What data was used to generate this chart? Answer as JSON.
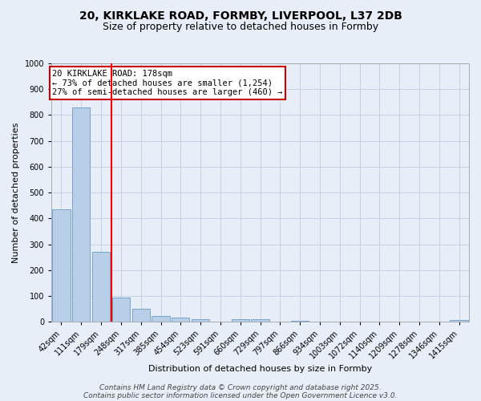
{
  "title_line1": "20, KIRKLAKE ROAD, FORMBY, LIVERPOOL, L37 2DB",
  "title_line2": "Size of property relative to detached houses in Formby",
  "xlabel": "Distribution of detached houses by size in Formby",
  "ylabel": "Number of detached properties",
  "categories": [
    "42sqm",
    "111sqm",
    "179sqm",
    "248sqm",
    "317sqm",
    "385sqm",
    "454sqm",
    "523sqm",
    "591sqm",
    "660sqm",
    "729sqm",
    "797sqm",
    "866sqm",
    "934sqm",
    "1003sqm",
    "1072sqm",
    "1140sqm",
    "1209sqm",
    "1278sqm",
    "1346sqm",
    "1415sqm"
  ],
  "values": [
    435,
    830,
    270,
    95,
    50,
    23,
    15,
    10,
    0,
    10,
    10,
    0,
    5,
    0,
    0,
    0,
    0,
    0,
    0,
    0,
    8
  ],
  "bar_color": "#b8cfe8",
  "bar_edge_color": "#6699cc",
  "red_line_x": 2.5,
  "annotation_text": "20 KIRKLAKE ROAD: 178sqm\n← 73% of detached houses are smaller (1,254)\n27% of semi-detached houses are larger (460) →",
  "annotation_box_color": "#ffffff",
  "annotation_box_edge": "#cc0000",
  "ylim": [
    0,
    1000
  ],
  "yticks": [
    0,
    100,
    200,
    300,
    400,
    500,
    600,
    700,
    800,
    900,
    1000
  ],
  "footnote_line1": "Contains HM Land Registry data © Crown copyright and database right 2025.",
  "footnote_line2": "Contains public sector information licensed under the Open Government Licence v3.0.",
  "background_color": "#e8eef8",
  "grid_color": "#c0cce0",
  "title_fontsize": 10,
  "subtitle_fontsize": 9,
  "axis_label_fontsize": 8,
  "tick_fontsize": 7,
  "annotation_fontsize": 7.5,
  "footnote_fontsize": 6.5
}
